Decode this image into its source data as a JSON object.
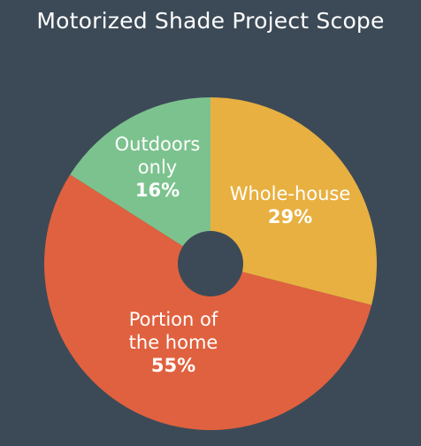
{
  "chart_data": {
    "type": "pie",
    "title": "Motorized Shade Project Scope",
    "slices": [
      {
        "label_lines": [
          "Whole-house"
        ],
        "value": 29,
        "value_label": "29%",
        "color": "#e8b040"
      },
      {
        "label_lines": [
          "Portion of",
          "the home"
        ],
        "value": 55,
        "value_label": "55%",
        "color": "#e0613f"
      },
      {
        "label_lines": [
          "Outdoors",
          "only"
        ],
        "value": 16,
        "value_label": "16%",
        "color": "#7cc28e"
      }
    ],
    "background": "#3c4a57"
  }
}
